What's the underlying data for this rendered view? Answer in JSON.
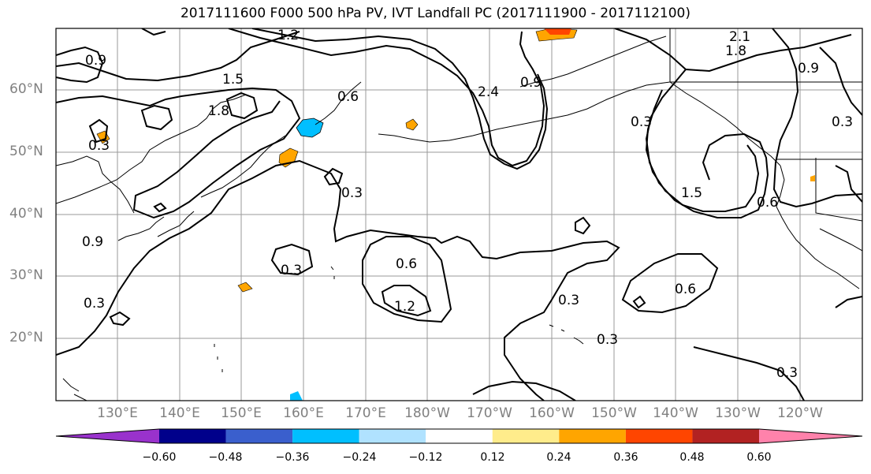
{
  "title": "2017111600 F000 500 hPa PV, IVT Landfall PC (2017111900 - 2017112100)",
  "latitude_labels": [
    "60°N",
    "50°N",
    "40°N",
    "30°N",
    "20°N"
  ],
  "longitude_labels": [
    "130°E",
    "140°E",
    "150°E",
    "160°E",
    "170°E",
    "180°W",
    "170°W",
    "160°W",
    "150°W",
    "140°W",
    "130°W",
    "120°W"
  ],
  "contour_labels": [
    "0.3",
    "0.6",
    "0.9",
    "1.2",
    "1.5",
    "1.8",
    "2.1",
    "2.4"
  ],
  "colorbar": {
    "ticks": [
      "−0.60",
      "−0.48",
      "−0.36",
      "−0.24",
      "−0.12",
      "0.12",
      "0.24",
      "0.36",
      "0.48",
      "0.60"
    ],
    "colors": [
      "#9932cc",
      "#00008b",
      "#3a5fcd",
      "#00bfff",
      "#b0e2ff",
      "#ffffff",
      "#ffec8b",
      "#ffa500",
      "#ff4500",
      "#b22222",
      "#ff82ab"
    ]
  }
}
